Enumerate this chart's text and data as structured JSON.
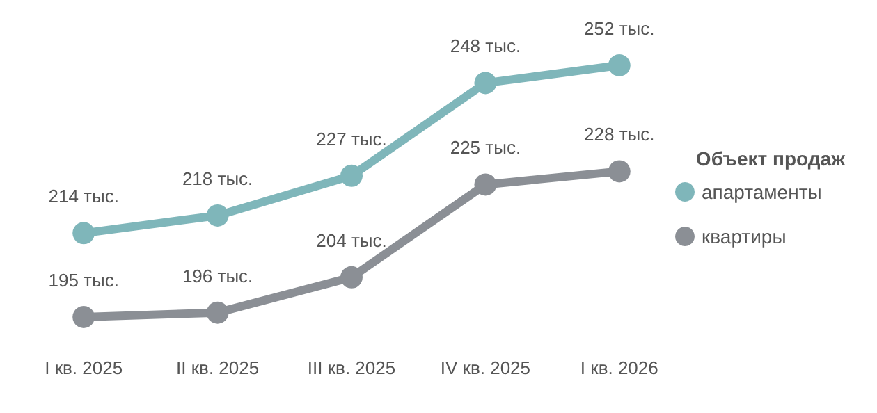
{
  "chart_data": {
    "type": "line",
    "categories": [
      "I кв. 2025",
      "II кв. 2025",
      "III кв. 2025",
      "IV кв. 2025",
      "I кв. 2026"
    ],
    "series": [
      {
        "name": "апартаменты",
        "color": "#7fb6ba",
        "values": [
          214,
          218,
          227,
          248,
          252
        ],
        "value_labels": [
          "214 тыс.",
          "218 тыс.",
          "227 тыс.",
          "248 тыс.",
          "252 тыс."
        ]
      },
      {
        "name": "квартиры",
        "color": "#8b8f95",
        "values": [
          195,
          196,
          204,
          225,
          228
        ],
        "value_labels": [
          "195 тыс.",
          "196 тыс.",
          "204 тыс.",
          "225 тыс.",
          "228 тыс."
        ]
      }
    ],
    "legend_title": "Объект продаж",
    "legend": "right",
    "marker": "circle",
    "line_style": "solid",
    "grid": false
  }
}
